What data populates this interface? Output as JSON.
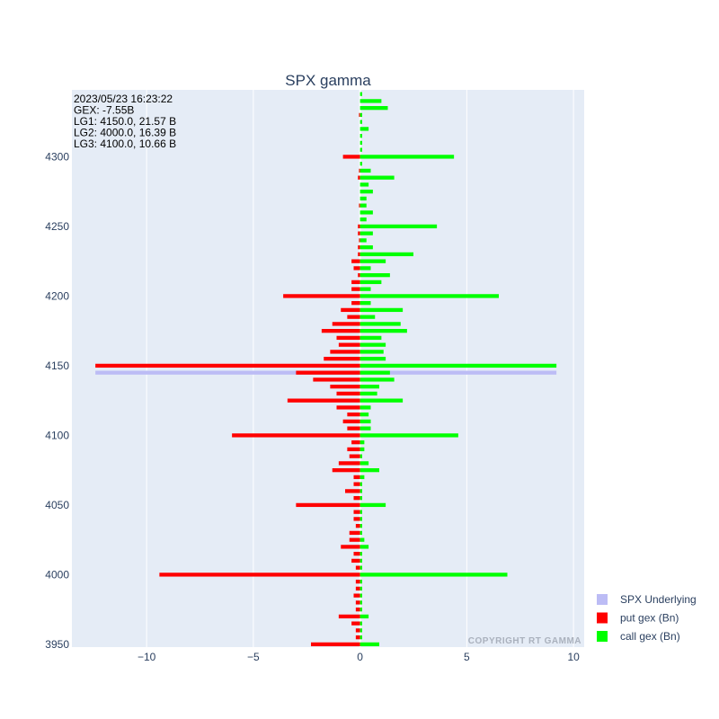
{
  "chart_data": {
    "type": "bar",
    "orientation": "horizontal",
    "barmode": "overlay",
    "title": "SPX gamma",
    "xlim": [
      -13.5,
      10.5
    ],
    "ylim": [
      3948,
      4348
    ],
    "xticks": [
      -10,
      -5,
      0,
      5,
      10
    ],
    "xtick_labels": [
      "−10",
      "−5",
      "0",
      "5",
      "10"
    ],
    "yticks": [
      3950,
      4000,
      4050,
      4100,
      4150,
      4200,
      4250,
      4300
    ],
    "yticklabels": [
      "3950",
      "4000",
      "4050",
      "4100",
      "4150",
      "4200",
      "4250",
      "4300"
    ],
    "grid": true,
    "legend_position": "right-bottom",
    "annotations": [
      "2023/05/23 16:23:22",
      "GEX: -7.55B",
      "LG1: 4150.0, 21.57 B",
      "LG2: 4000.0, 16.39 B",
      "LG3: 4100.0, 10.66 B"
    ],
    "watermark": "COPYRIGHT RT GAMMA",
    "series": [
      {
        "name": "SPX Underlying",
        "color": "#bcbcf5",
        "y": [
          4145.0
        ],
        "x_start": [
          -12.4
        ],
        "x_end": [
          9.2
        ]
      },
      {
        "name": "put gex (Bn)",
        "color": "#ff0000",
        "strikes": [
          3950,
          3955,
          3960,
          3965,
          3970,
          3975,
          3980,
          3985,
          3990,
          3995,
          4000,
          4005,
          4010,
          4015,
          4020,
          4025,
          4030,
          4035,
          4040,
          4045,
          4050,
          4055,
          4060,
          4065,
          4070,
          4075,
          4080,
          4085,
          4090,
          4095,
          4100,
          4105,
          4110,
          4115,
          4120,
          4125,
          4130,
          4135,
          4140,
          4145,
          4150,
          4155,
          4160,
          4165,
          4170,
          4175,
          4180,
          4185,
          4190,
          4195,
          4200,
          4205,
          4210,
          4215,
          4220,
          4225,
          4230,
          4235,
          4240,
          4245,
          4250,
          4255,
          4260,
          4265,
          4270,
          4275,
          4280,
          4285,
          4290,
          4295,
          4300,
          4305,
          4310,
          4315,
          4320,
          4325,
          4330,
          4335,
          4340,
          4345
        ],
        "values": [
          -2.3,
          -0.2,
          -0.2,
          -0.4,
          -1.0,
          -0.2,
          -0.2,
          -0.3,
          -0.2,
          -0.2,
          -9.4,
          -0.2,
          -0.4,
          -0.3,
          -0.9,
          -0.5,
          -0.5,
          -0.2,
          -0.3,
          -0.3,
          -3.0,
          -0.3,
          -0.7,
          -0.3,
          -0.3,
          -1.3,
          -1.0,
          -0.5,
          -0.6,
          -0.4,
          -6.0,
          -0.6,
          -0.8,
          -0.6,
          -1.1,
          -3.4,
          -1.1,
          -1.4,
          -2.2,
          -3.0,
          -12.4,
          -1.7,
          -1.4,
          -1.0,
          -1.1,
          -1.8,
          -1.3,
          -0.6,
          -0.9,
          -0.4,
          -3.6,
          -0.4,
          -0.4,
          -0.1,
          -0.3,
          -0.4,
          -0.1,
          -0.1,
          -0.05,
          -0.1,
          -0.1,
          0,
          0,
          -0.05,
          0,
          0,
          0,
          -0.1,
          -0.05,
          0,
          -0.8,
          0,
          0,
          0,
          0,
          0,
          -0.05,
          0,
          0,
          0
        ]
      },
      {
        "name": "call gex (Bn)",
        "color": "#00ff00",
        "strikes": [
          3950,
          3955,
          3960,
          3965,
          3970,
          3975,
          3980,
          3985,
          3990,
          3995,
          4000,
          4005,
          4010,
          4015,
          4020,
          4025,
          4030,
          4035,
          4040,
          4045,
          4050,
          4055,
          4060,
          4065,
          4070,
          4075,
          4080,
          4085,
          4090,
          4095,
          4100,
          4105,
          4110,
          4115,
          4120,
          4125,
          4130,
          4135,
          4140,
          4145,
          4150,
          4155,
          4160,
          4165,
          4170,
          4175,
          4180,
          4185,
          4190,
          4195,
          4200,
          4205,
          4210,
          4215,
          4220,
          4225,
          4230,
          4235,
          4240,
          4245,
          4250,
          4255,
          4260,
          4265,
          4270,
          4275,
          4280,
          4285,
          4290,
          4295,
          4300,
          4305,
          4310,
          4315,
          4320,
          4325,
          4330,
          4335,
          4340,
          4345
        ],
        "values": [
          0.9,
          0.1,
          0.1,
          0.1,
          0.4,
          0.1,
          0.1,
          0.1,
          0.1,
          0.1,
          6.9,
          0.1,
          0.1,
          0.1,
          0.4,
          0.2,
          0.1,
          0.1,
          0.1,
          0.1,
          1.2,
          0.1,
          0.1,
          0.1,
          0.2,
          0.9,
          0.4,
          0.1,
          0.2,
          0.2,
          4.6,
          0.5,
          0.5,
          0.4,
          0.5,
          2.0,
          0.8,
          0.9,
          1.6,
          1.4,
          9.2,
          1.2,
          1.1,
          1.2,
          1.0,
          2.2,
          1.9,
          0.7,
          2.0,
          0.5,
          6.5,
          0.5,
          1.0,
          1.4,
          0.5,
          1.2,
          2.5,
          0.6,
          0.3,
          0.6,
          3.6,
          0.3,
          0.6,
          0.3,
          0.3,
          0.6,
          0.4,
          1.6,
          0.5,
          0.1,
          4.4,
          0.1,
          0.1,
          0.1,
          0.4,
          0.1,
          0.1,
          1.3,
          1.0,
          0.1
        ]
      }
    ]
  }
}
